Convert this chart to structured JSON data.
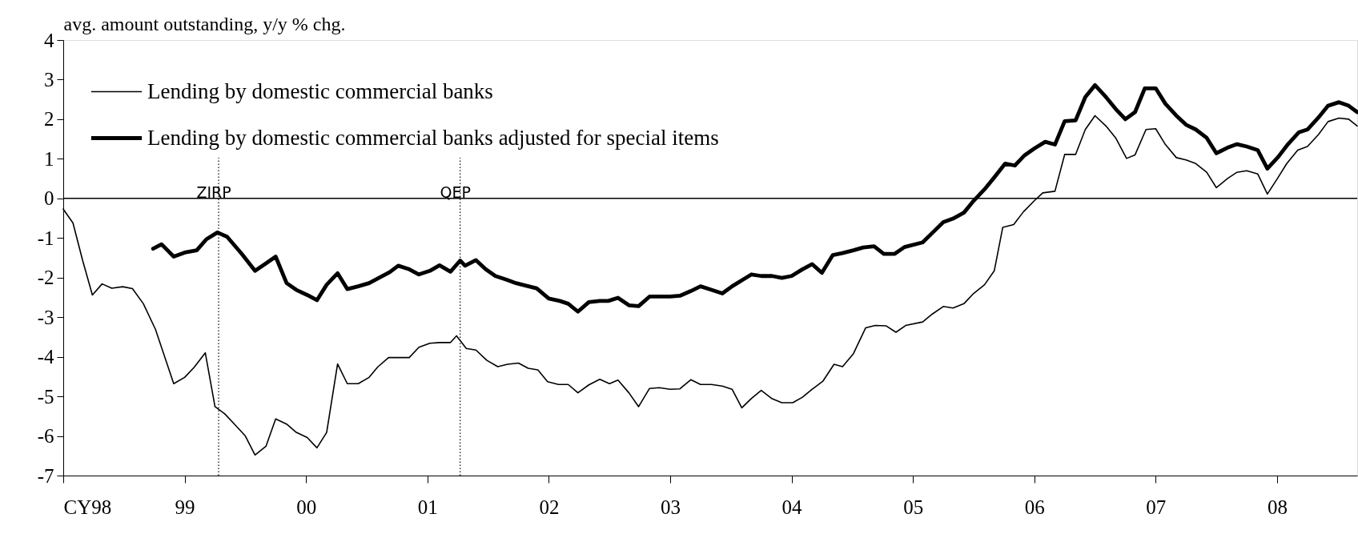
{
  "chart_data": {
    "type": "line",
    "ylabel": "avg. amount outstanding, y/y % chg.",
    "series": [
      {
        "name": "Lending by domestic commercial banks",
        "color": "#000000",
        "x": [
          1998.0,
          1998.08,
          1998.16,
          1998.24,
          1998.32,
          1998.4,
          1998.49,
          1998.57,
          1998.66,
          1998.76,
          1998.91,
          1999.0,
          1999.08,
          1999.17,
          1999.25,
          1999.33,
          1999.41,
          1999.5,
          1999.58,
          1999.67,
          1999.75,
          1999.84,
          1999.92,
          2000.01,
          2000.09,
          2000.17,
          2000.26,
          2000.34,
          2000.43,
          2000.52,
          2000.59,
          2000.68,
          2000.76,
          2000.85,
          2000.93,
          2001.02,
          2001.1,
          2001.19,
          2001.24,
          2001.32,
          2001.4,
          2001.49,
          2001.58,
          2001.66,
          2001.75,
          2001.83,
          2001.91,
          2001.99,
          2002.08,
          2002.16,
          2002.24,
          2002.33,
          2002.42,
          2002.5,
          2002.57,
          2002.66,
          2002.74,
          2002.83,
          2002.91,
          2003.0,
          2003.08,
          2003.17,
          2003.25,
          2003.34,
          2003.43,
          2003.51,
          2003.59,
          2003.67,
          2003.75,
          2003.84,
          2003.92,
          2004.01,
          2004.09,
          2004.17,
          2004.26,
          2004.35,
          2004.42,
          2004.51,
          2004.61,
          2004.69,
          2004.78,
          2004.86,
          2004.94,
          2005.08,
          2005.16,
          2005.25,
          2005.33,
          2005.42,
          2005.5,
          2005.59,
          2005.67,
          2005.74,
          2005.83,
          2005.91,
          2006.0,
          2006.07,
          2006.17,
          2006.25,
          2006.34,
          2006.42,
          2006.5,
          2006.59,
          2006.67,
          2006.76,
          2006.83,
          2006.92,
          2007.0,
          2007.08,
          2007.17,
          2007.25,
          2007.33,
          2007.42,
          2007.5,
          2007.59,
          2007.67,
          2007.75,
          2007.84,
          2007.92,
          2008.0,
          2008.08,
          2008.17,
          2008.25,
          2008.34,
          2008.42,
          2008.51,
          2008.59,
          2008.66
        ],
        "values": [
          -0.27,
          -0.62,
          -1.57,
          -2.44,
          -2.16,
          -2.27,
          -2.23,
          -2.28,
          -2.66,
          -3.31,
          -4.68,
          -4.52,
          -4.26,
          -3.9,
          -5.26,
          -5.44,
          -5.7,
          -6.0,
          -6.48,
          -6.26,
          -5.57,
          -5.7,
          -5.91,
          -6.04,
          -6.3,
          -5.91,
          -4.18,
          -4.68,
          -4.68,
          -4.52,
          -4.26,
          -4.02,
          -4.02,
          -4.02,
          -3.76,
          -3.66,
          -3.64,
          -3.64,
          -3.47,
          -3.79,
          -3.83,
          -4.09,
          -4.25,
          -4.19,
          -4.16,
          -4.29,
          -4.33,
          -4.63,
          -4.7,
          -4.7,
          -4.91,
          -4.71,
          -4.57,
          -4.68,
          -4.59,
          -4.91,
          -5.26,
          -4.8,
          -4.78,
          -4.82,
          -4.81,
          -4.58,
          -4.7,
          -4.7,
          -4.74,
          -4.82,
          -5.29,
          -5.05,
          -4.85,
          -5.06,
          -5.16,
          -5.16,
          -5.02,
          -4.82,
          -4.61,
          -4.19,
          -4.25,
          -3.92,
          -3.27,
          -3.21,
          -3.22,
          -3.38,
          -3.21,
          -3.12,
          -2.92,
          -2.73,
          -2.77,
          -2.66,
          -2.4,
          -2.18,
          -1.83,
          -0.73,
          -0.66,
          -0.34,
          -0.06,
          0.14,
          0.18,
          1.11,
          1.11,
          1.74,
          2.09,
          1.83,
          1.53,
          1.01,
          1.1,
          1.74,
          1.76,
          1.36,
          1.03,
          0.97,
          0.88,
          0.66,
          0.27,
          0.5,
          0.66,
          0.7,
          0.62,
          0.11,
          0.49,
          0.88,
          1.22,
          1.31,
          1.61,
          1.94,
          2.03,
          2.0,
          1.83
        ]
      },
      {
        "name": "Lending by domestic commercial banks adjusted for special items",
        "color": "#000000",
        "x": [
          1998.74,
          1998.81,
          1998.91,
          1999.01,
          1999.1,
          1999.18,
          1999.27,
          1999.35,
          1999.47,
          1999.58,
          1999.67,
          1999.75,
          1999.84,
          1999.92,
          2000.01,
          2000.09,
          2000.17,
          2000.26,
          2000.34,
          2000.43,
          2000.52,
          2000.6,
          2000.69,
          2000.76,
          2000.85,
          2000.93,
          2001.02,
          2001.1,
          2001.19,
          2001.27,
          2001.31,
          2001.4,
          2001.48,
          2001.56,
          2001.65,
          2001.73,
          2001.82,
          2001.9,
          2002.0,
          2002.09,
          2002.16,
          2002.24,
          2002.33,
          2002.42,
          2002.49,
          2002.57,
          2002.66,
          2002.74,
          2002.83,
          2002.91,
          2003.0,
          2003.08,
          2003.17,
          2003.25,
          2003.34,
          2003.43,
          2003.51,
          2003.6,
          2003.67,
          2003.75,
          2003.84,
          2003.92,
          2004.0,
          2004.09,
          2004.17,
          2004.25,
          2004.34,
          2004.42,
          2004.51,
          2004.59,
          2004.68,
          2004.76,
          2004.85,
          2004.93,
          2005.08,
          2005.16,
          2005.25,
          2005.33,
          2005.42,
          2005.5,
          2005.59,
          2005.67,
          2005.76,
          2005.84,
          2005.92,
          2006.0,
          2006.09,
          2006.17,
          2006.25,
          2006.34,
          2006.42,
          2006.5,
          2006.59,
          2006.67,
          2006.75,
          2006.83,
          2006.91,
          2007.0,
          2007.08,
          2007.17,
          2007.25,
          2007.33,
          2007.42,
          2007.5,
          2007.59,
          2007.67,
          2007.75,
          2007.84,
          2007.92,
          2008.01,
          2008.09,
          2008.18,
          2008.25,
          2008.34,
          2008.42,
          2008.51,
          2008.59,
          2008.66
        ],
        "values": [
          -1.27,
          -1.16,
          -1.47,
          -1.36,
          -1.31,
          -1.03,
          -0.86,
          -0.97,
          -1.4,
          -1.83,
          -1.64,
          -1.47,
          -2.14,
          -2.31,
          -2.44,
          -2.57,
          -2.18,
          -1.89,
          -2.29,
          -2.22,
          -2.14,
          -2.01,
          -1.86,
          -1.7,
          -1.79,
          -1.92,
          -1.83,
          -1.69,
          -1.85,
          -1.57,
          -1.7,
          -1.56,
          -1.79,
          -1.96,
          -2.05,
          -2.14,
          -2.21,
          -2.27,
          -2.53,
          -2.59,
          -2.66,
          -2.86,
          -2.62,
          -2.59,
          -2.59,
          -2.51,
          -2.7,
          -2.72,
          -2.48,
          -2.48,
          -2.48,
          -2.46,
          -2.34,
          -2.22,
          -2.31,
          -2.4,
          -2.22,
          -2.05,
          -1.92,
          -1.96,
          -1.96,
          -2.01,
          -1.96,
          -1.79,
          -1.66,
          -1.88,
          -1.43,
          -1.38,
          -1.31,
          -1.24,
          -1.21,
          -1.4,
          -1.4,
          -1.23,
          -1.11,
          -0.87,
          -0.6,
          -0.51,
          -0.36,
          -0.06,
          0.23,
          0.53,
          0.88,
          0.83,
          1.09,
          1.26,
          1.43,
          1.36,
          1.95,
          1.97,
          2.56,
          2.86,
          2.56,
          2.26,
          2.0,
          2.18,
          2.78,
          2.78,
          2.39,
          2.09,
          1.86,
          1.74,
          1.53,
          1.14,
          1.28,
          1.37,
          1.31,
          1.22,
          0.75,
          1.05,
          1.37,
          1.67,
          1.74,
          2.04,
          2.34,
          2.43,
          2.34,
          2.18
        ]
      }
    ],
    "xlim": [
      1998.0,
      2008.66
    ],
    "xticks": [
      {
        "value": 1998,
        "label": "CY98"
      },
      {
        "value": 1999,
        "label": "99"
      },
      {
        "value": 2000,
        "label": "00"
      },
      {
        "value": 2001,
        "label": "01"
      },
      {
        "value": 2002,
        "label": "02"
      },
      {
        "value": 2003,
        "label": "03"
      },
      {
        "value": 2004,
        "label": "04"
      },
      {
        "value": 2005,
        "label": "05"
      },
      {
        "value": 2006,
        "label": "06"
      },
      {
        "value": 2007,
        "label": "07"
      },
      {
        "value": 2008,
        "label": "08"
      }
    ],
    "ylim": [
      -7,
      4
    ],
    "yticks": [
      -7,
      -6,
      -5,
      -4,
      -3,
      -2,
      -1,
      0,
      1,
      2,
      3,
      4
    ],
    "ref_lines": [
      {
        "axis": "x",
        "value": 1999.28,
        "label": "ZIRP",
        "line_style": "dotted"
      },
      {
        "axis": "x",
        "value": 2001.27,
        "label": "QEP",
        "line_style": "dotted"
      },
      {
        "axis": "y",
        "value": 0,
        "line_style": "solid"
      }
    ],
    "legend": "top left",
    "grid": false
  }
}
